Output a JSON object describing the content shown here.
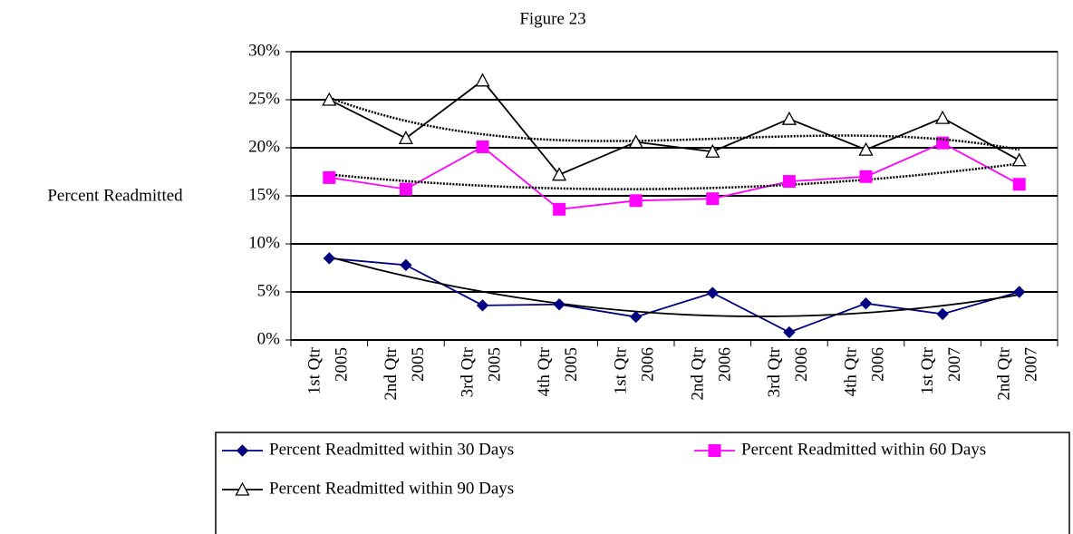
{
  "chart_data": {
    "type": "line",
    "title": "Figure 23",
    "y_label": "Percent Readmitted",
    "categories": [
      "1st Qtr 2005",
      "2nd Qtr 2005",
      "3rd Qtr 2005",
      "4th Qtr 2005",
      "1st Qtr 2006",
      "2nd Qtr 2006",
      "3rd Qtr 2006",
      "4th Qtr 2006",
      "1st Qtr 2007",
      "2nd Qtr 2007"
    ],
    "series": [
      {
        "name": "Percent Readmitted within 30 Days",
        "color": "#000080",
        "marker": "diamond",
        "trendline": {
          "type": "polynomial",
          "order": 2,
          "style": "solid"
        },
        "values": [
          8.5,
          7.8,
          3.6,
          3.7,
          2.4,
          4.9,
          0.8,
          3.8,
          2.7,
          5.0
        ]
      },
      {
        "name": "Percent Readmitted within 60 Days",
        "color": "#ff00ff",
        "marker": "square",
        "trendline": {
          "type": "polynomial",
          "order": 2,
          "style": "dotted"
        },
        "values": [
          16.9,
          15.7,
          20.1,
          13.6,
          14.5,
          14.7,
          16.5,
          17.0,
          20.5,
          16.2
        ]
      },
      {
        "name": "Percent Readmitted within 90 Days",
        "color": "#000000",
        "marker": "triangle",
        "trendline": {
          "type": "polynomial",
          "order": 3,
          "style": "dotted"
        },
        "values": [
          25.0,
          21.0,
          27.0,
          17.2,
          20.6,
          19.6,
          23.0,
          19.8,
          23.1,
          18.7
        ]
      }
    ],
    "ylim": [
      0,
      30
    ],
    "yticks": [
      {
        "value": 0,
        "label": "0%"
      },
      {
        "value": 5,
        "label": "5%"
      },
      {
        "value": 10,
        "label": "10%"
      },
      {
        "value": 15,
        "label": "15%"
      },
      {
        "value": 20,
        "label": "20%"
      },
      {
        "value": 25,
        "label": "25%"
      },
      {
        "value": 30,
        "label": "30%"
      }
    ],
    "grid": true,
    "legend": "bottom"
  }
}
